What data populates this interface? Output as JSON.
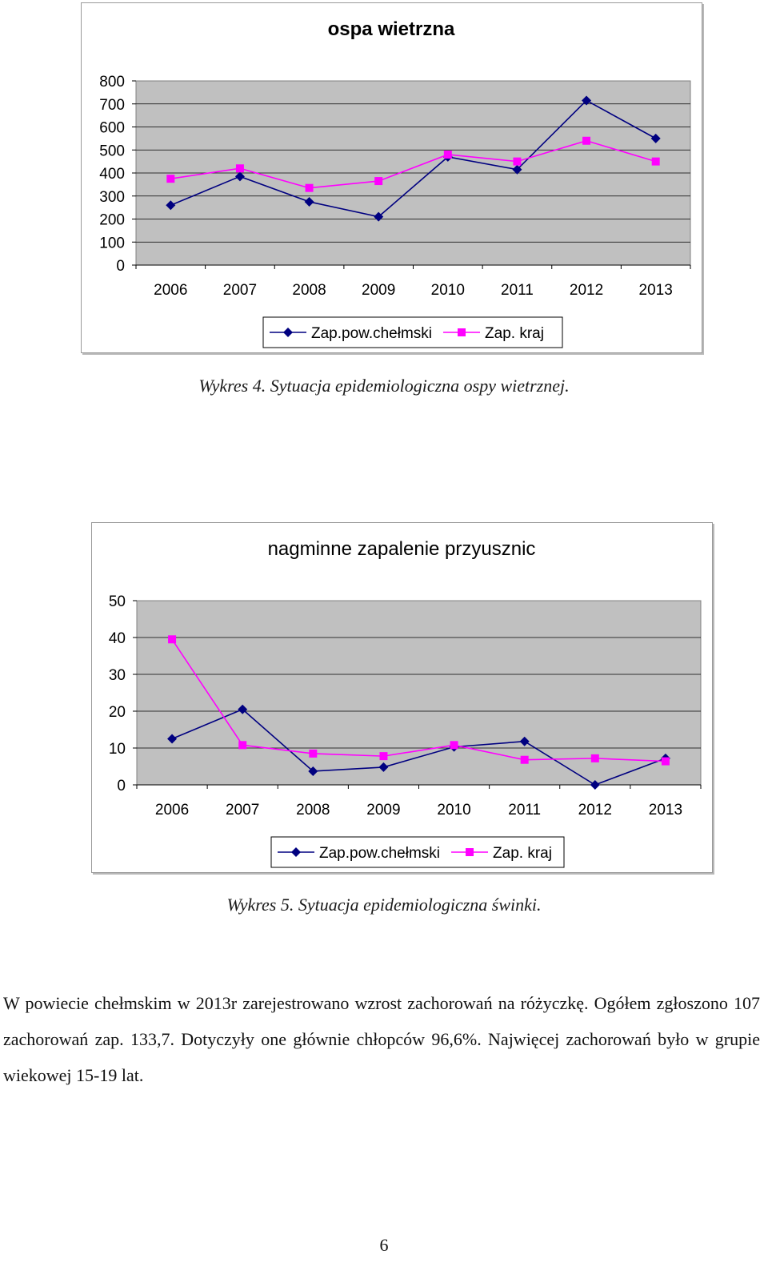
{
  "chart_data": [
    {
      "type": "line",
      "title": "ospa wietrzna",
      "x": [
        "2006",
        "2007",
        "2008",
        "2009",
        "2010",
        "2011",
        "2012",
        "2013"
      ],
      "ylim": [
        0,
        800
      ],
      "yticks": [
        "0",
        "100",
        "200",
        "300",
        "400",
        "500",
        "600",
        "700",
        "800"
      ],
      "grid": true,
      "legend": "bottom",
      "series": [
        {
          "name": "Zap.pow.chełmski",
          "color": "#000080",
          "marker": "diamond",
          "values": [
            260,
            385,
            275,
            210,
            470,
            415,
            715,
            550
          ]
        },
        {
          "name": "Zap. kraj",
          "color": "#ff00ff",
          "marker": "square",
          "values": [
            375,
            420,
            335,
            365,
            480,
            450,
            540,
            450
          ]
        }
      ]
    },
    {
      "type": "line",
      "title": "nagminne zapalenie przyusznic",
      "x": [
        "2006",
        "2007",
        "2008",
        "2009",
        "2010",
        "2011",
        "2012",
        "2013"
      ],
      "ylim": [
        0,
        50
      ],
      "yticks": [
        "0",
        "10",
        "20",
        "30",
        "40",
        "50"
      ],
      "grid": true,
      "legend": "bottom",
      "series": [
        {
          "name": "Zap.pow.chełmski",
          "color": "#000080",
          "marker": "diamond",
          "values": [
            12.5,
            20.5,
            3.7,
            4.8,
            10.3,
            11.8,
            0,
            7.2
          ]
        },
        {
          "name": "Zap. kraj",
          "color": "#ff00ff",
          "marker": "square",
          "values": [
            39.5,
            10.8,
            8.5,
            7.8,
            10.8,
            6.8,
            7.2,
            6.4
          ]
        }
      ]
    }
  ],
  "captions": [
    "Wykres 4. Sytuacja epidemiologiczna ospy wietrznej.",
    "Wykres 5. Sytuacja epidemiologiczna świnki."
  ],
  "paragraph": "W powiecie chełmskim w 2013r zarejestrowano wzrost zachorowań na różyczkę. Ogółem zgłoszono 107 zachorowań zap. 133,7. Dotyczyły one głównie chłopców 96,6%. Najwięcej zachorowań było w grupie wiekowej 15-19 lat.",
  "page_number": "6"
}
